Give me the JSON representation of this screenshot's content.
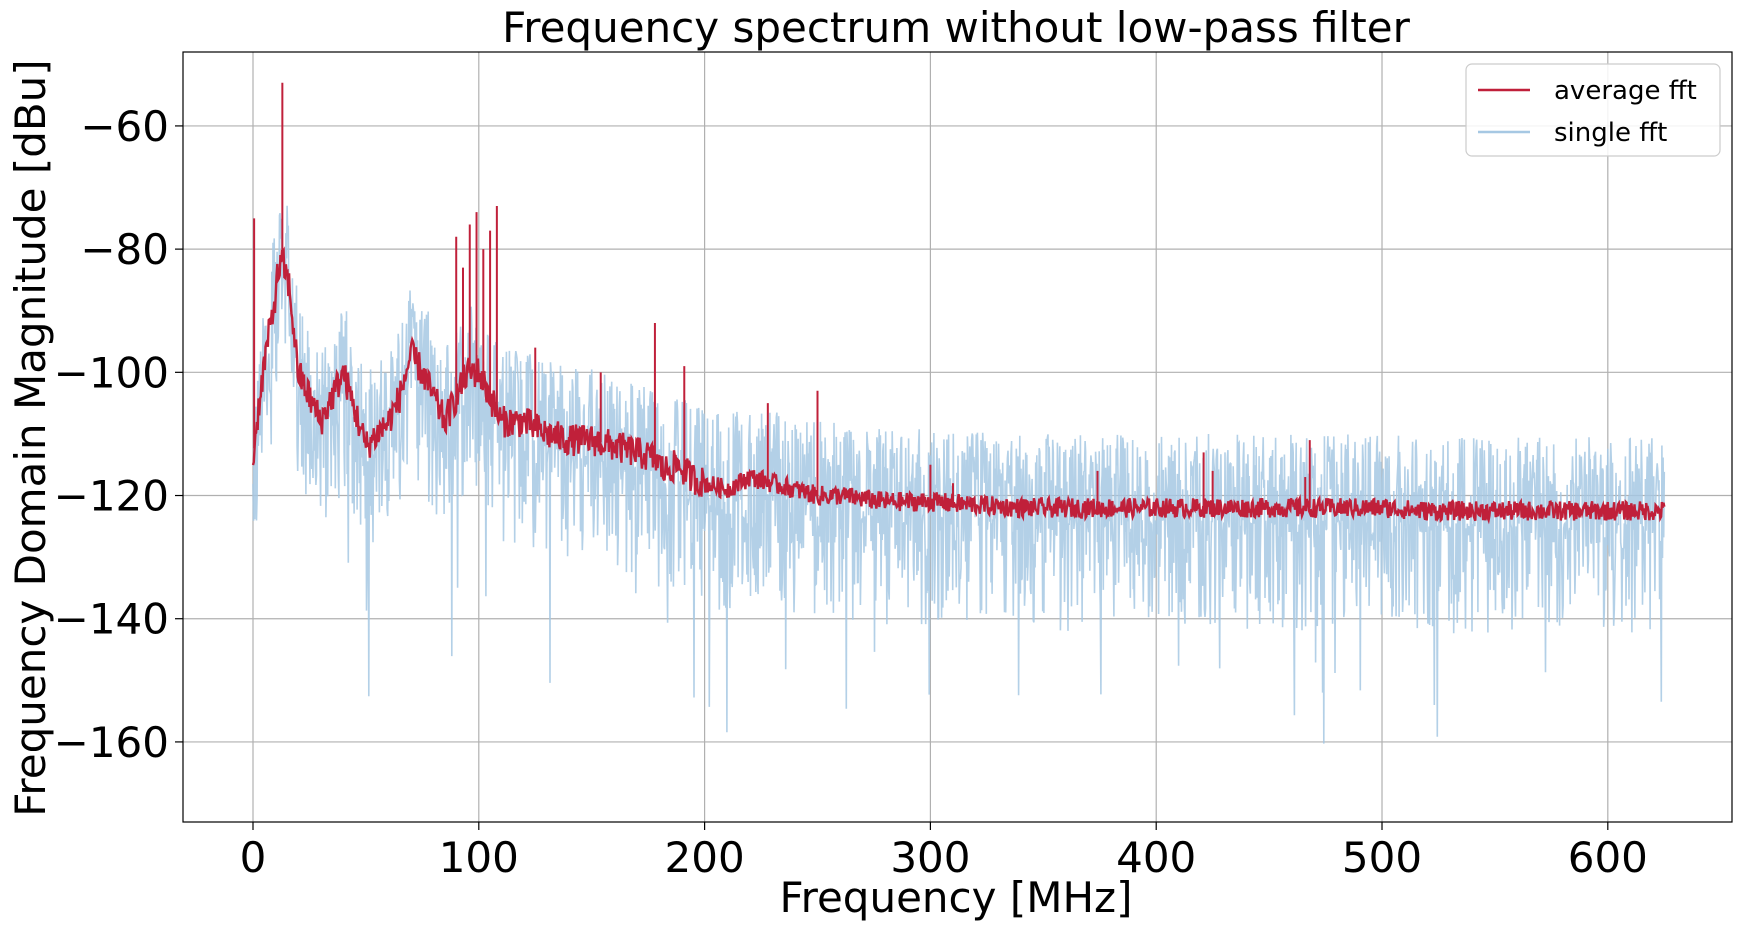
{
  "chart_data": {
    "type": "line",
    "title": "Frequency spectrum without low-pass filter",
    "xlabel": "Frequency [MHz]",
    "ylabel": "Frequency Domain Magnitude [dBu]",
    "xlim": [
      -31,
      655
    ],
    "ylim": [
      -173,
      -48
    ],
    "x_ticks": [
      0,
      100,
      200,
      300,
      400,
      500,
      600
    ],
    "y_ticks": [
      -60,
      -80,
      -100,
      -120,
      -140,
      -160
    ],
    "x_tick_labels": [
      "0",
      "100",
      "200",
      "300",
      "400",
      "500",
      "600"
    ],
    "y_tick_labels": [
      "−60",
      "−80",
      "−100",
      "−120",
      "−140",
      "−160"
    ],
    "grid": true,
    "legend_position": "upper-right",
    "series": [
      {
        "name": "average fft",
        "color": "#c0203a",
        "x": [
          0,
          3,
          6,
          9,
          11,
          13,
          16,
          20,
          25,
          30,
          35,
          40,
          45,
          50,
          55,
          60,
          65,
          70,
          75,
          80,
          85,
          90,
          95,
          100,
          105,
          110,
          120,
          130,
          140,
          150,
          160,
          170,
          178,
          182,
          188,
          194,
          200,
          210,
          220,
          230,
          240,
          250,
          260,
          280,
          300,
          320,
          340,
          360,
          380,
          400,
          420,
          440,
          460,
          480,
          500,
          520,
          540,
          560,
          580,
          600,
          625
        ],
        "values": [
          -114,
          -104,
          -96,
          -90,
          -84,
          -82,
          -86,
          -100,
          -104,
          -108,
          -104,
          -100,
          -106,
          -112,
          -110,
          -108,
          -104,
          -97,
          -100,
          -104,
          -108,
          -104,
          -100,
          -100,
          -104,
          -108,
          -108,
          -110,
          -111,
          -111,
          -112,
          -113,
          -114,
          -116,
          -115,
          -117,
          -118,
          -119,
          -117,
          -118,
          -119,
          -120,
          -120,
          -121,
          -121,
          -121.5,
          -122,
          -122,
          -122,
          -122,
          -122,
          -122,
          -122,
          -122,
          -122,
          -122.5,
          -122.5,
          -122.5,
          -122.5,
          -122.5,
          -122.5
        ]
      },
      {
        "name": "single fft",
        "color": "#a6c8e3",
        "x": [
          0,
          3,
          6,
          9,
          11,
          13,
          16,
          20,
          25,
          30,
          35,
          40,
          45,
          50,
          55,
          60,
          65,
          70,
          75,
          80,
          85,
          90,
          95,
          100,
          105,
          110,
          120,
          130,
          140,
          150,
          160,
          170,
          178,
          182,
          188,
          194,
          200,
          210,
          220,
          230,
          240,
          250,
          260,
          280,
          300,
          320,
          340,
          360,
          380,
          400,
          420,
          440,
          460,
          480,
          500,
          520,
          540,
          560,
          580,
          600,
          625
        ],
        "values": [
          -114,
          -104,
          -96,
          -90,
          -84,
          -82,
          -86,
          -100,
          -104,
          -108,
          -104,
          -100,
          -106,
          -112,
          -110,
          -108,
          -104,
          -97,
          -100,
          -104,
          -108,
          -104,
          -100,
          -100,
          -104,
          -108,
          -108,
          -110,
          -111,
          -111,
          -112,
          -113,
          -114,
          -116,
          -115,
          -117,
          -118,
          -119,
          -117,
          -118,
          -119,
          -120,
          -120,
          -121,
          -121,
          -121.5,
          -122,
          -122,
          -122,
          -122,
          -122,
          -122,
          -122,
          -122,
          -122,
          -122.5,
          -122.5,
          -122.5,
          -122.5,
          -122.5,
          -122.5
        ]
      }
    ],
    "spikes": [
      {
        "x": 0.5,
        "y": -75
      },
      {
        "x": 13,
        "y": -53
      },
      {
        "x": 90,
        "y": -78
      },
      {
        "x": 93,
        "y": -83
      },
      {
        "x": 96,
        "y": -76
      },
      {
        "x": 99,
        "y": -74
      },
      {
        "x": 102,
        "y": -80
      },
      {
        "x": 105,
        "y": -77
      },
      {
        "x": 108,
        "y": -73
      },
      {
        "x": 125,
        "y": -96
      },
      {
        "x": 154,
        "y": -100
      },
      {
        "x": 178,
        "y": -92
      },
      {
        "x": 191,
        "y": -99
      },
      {
        "x": 228,
        "y": -105
      },
      {
        "x": 250,
        "y": -103
      },
      {
        "x": 300,
        "y": -115
      },
      {
        "x": 310,
        "y": -118
      },
      {
        "x": 374,
        "y": -116
      },
      {
        "x": 421,
        "y": -113
      },
      {
        "x": 425,
        "y": -116
      },
      {
        "x": 466,
        "y": -117
      },
      {
        "x": 468,
        "y": -111
      }
    ]
  }
}
